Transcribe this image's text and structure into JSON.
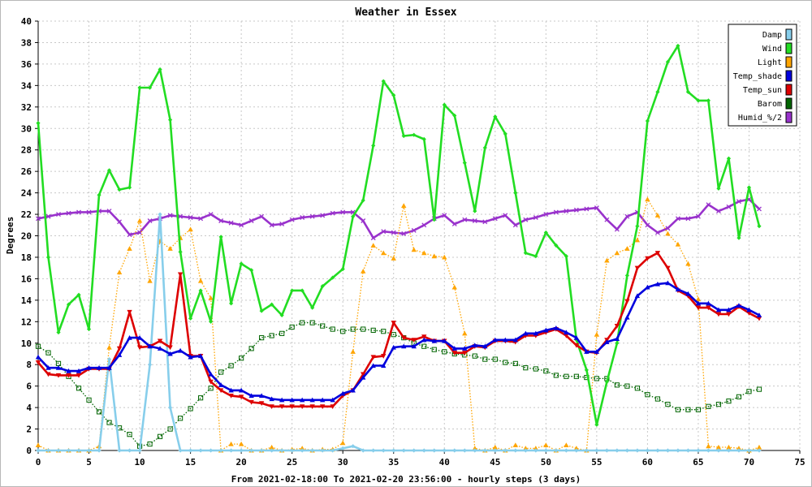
{
  "chart_data": {
    "type": "line",
    "title": "Weather in Essex",
    "xlabel": "From 2021-02-18:00 To 2021-02-20 23:56:00 - hourly steps (3 days)",
    "ylabel": "Degrees",
    "xlim": [
      0,
      75
    ],
    "ylim": [
      0,
      40
    ],
    "xticks": [
      0,
      5,
      10,
      15,
      20,
      25,
      30,
      35,
      40,
      45,
      50,
      55,
      60,
      65,
      70,
      75
    ],
    "yticks": [
      0,
      2,
      4,
      6,
      8,
      10,
      12,
      14,
      16,
      18,
      20,
      22,
      24,
      26,
      28,
      30,
      32,
      34,
      36,
      38,
      40
    ],
    "grid": true,
    "legend_position": "top-right",
    "series": [
      {
        "name": "Damp",
        "color": "#87ceeb",
        "style": "solid",
        "marker": "diamond",
        "values": [
          0,
          0,
          0,
          0,
          0,
          0,
          0,
          8.5,
          0,
          0,
          0,
          8,
          22,
          4,
          0,
          0,
          0,
          0,
          0,
          0,
          0,
          0,
          0,
          0,
          0,
          0,
          0,
          0,
          0,
          0,
          0.2,
          0.4,
          0,
          0,
          0,
          0,
          0,
          0,
          0,
          0,
          0,
          0,
          0,
          0,
          0,
          0,
          0,
          0,
          0,
          0,
          0,
          0,
          0,
          0,
          0,
          0,
          0,
          0,
          0,
          0,
          0,
          0,
          0,
          0,
          0,
          0,
          0,
          0,
          0,
          0,
          0,
          0
        ]
      },
      {
        "name": "Wind",
        "color": "#22dd22",
        "style": "solid",
        "marker": "diamond",
        "values": [
          30.5,
          18,
          11,
          13.6,
          14.5,
          11.3,
          23.8,
          26.1,
          24.3,
          24.5,
          33.8,
          33.8,
          35.5,
          30.8,
          18.5,
          12.3,
          14.9,
          12,
          19.9,
          13.7,
          17.4,
          16.8,
          13,
          13.6,
          12.6,
          14.9,
          14.9,
          13.3,
          15.3,
          16.1,
          16.9,
          21.8,
          23.3,
          28.4,
          34.4,
          33.1,
          29.3,
          29.4,
          29,
          21.5,
          32.2,
          31.2,
          26.8,
          22.3,
          28.2,
          31.1,
          29.5,
          24,
          18.4,
          18.1,
          20.3,
          19.1,
          18.1,
          10.3,
          7.5,
          2.4,
          6.4,
          10,
          16.3,
          20.9,
          30.7,
          33.4,
          36.2,
          37.7,
          33.4,
          32.6,
          32.6,
          24.4,
          27.2,
          19.8,
          24.5,
          20.9
        ]
      },
      {
        "name": "Light",
        "color": "#ffa500",
        "style": "dotted",
        "marker": "triangle",
        "values": [
          0.5,
          0,
          0,
          0,
          0,
          0,
          0.4,
          9.6,
          16.6,
          18.8,
          21.4,
          15.8,
          19.5,
          18.8,
          19.8,
          20.6,
          15.8,
          14.2,
          0,
          0.6,
          0.6,
          0,
          0,
          0.3,
          0,
          0.1,
          0.2,
          0,
          0.1,
          0.1,
          0.7,
          9.2,
          16.7,
          19.1,
          18.4,
          17.9,
          22.8,
          18.7,
          18.4,
          18.1,
          18,
          15.2,
          10.9,
          0.2,
          0,
          0.3,
          0,
          0.5,
          0.2,
          0.2,
          0.5,
          0,
          0.5,
          0.2,
          0,
          10.8,
          17.7,
          18.4,
          18.8,
          19.6,
          23.4,
          21.9,
          20.2,
          19.2,
          17.4,
          14.1,
          0.4,
          0.3,
          0.3,
          0.2,
          0,
          0.3
        ]
      },
      {
        "name": "Temp_shade",
        "color": "#0000dd",
        "style": "solid",
        "marker": "triangle",
        "values": [
          8.7,
          7.7,
          7.7,
          7.4,
          7.4,
          7.7,
          7.7,
          7.7,
          8.9,
          10.5,
          10.5,
          9.7,
          9.5,
          9,
          9.3,
          8.7,
          8.8,
          7.1,
          6.1,
          5.6,
          5.6,
          5.1,
          5.1,
          4.8,
          4.7,
          4.7,
          4.7,
          4.7,
          4.7,
          4.7,
          5.3,
          5.6,
          6.8,
          7.9,
          7.9,
          9.6,
          9.7,
          9.7,
          10.3,
          10.2,
          10.2,
          9.5,
          9.5,
          9.8,
          9.7,
          10.3,
          10.3,
          10.3,
          10.9,
          10.9,
          11.2,
          11.4,
          11,
          10.5,
          9.2,
          9.2,
          10.1,
          10.4,
          12.4,
          14.4,
          15.2,
          15.5,
          15.6,
          15,
          14.6,
          13.7,
          13.7,
          13.1,
          13.1,
          13.5,
          13.1,
          12.6
        ]
      },
      {
        "name": "Temp_sun",
        "color": "#dd0000",
        "style": "solid",
        "marker": "triangle-down",
        "values": [
          8.2,
          7.1,
          7,
          7,
          7,
          7.6,
          7.6,
          7.6,
          9.5,
          12.9,
          9.6,
          9.7,
          10.2,
          9.6,
          16.4,
          8.8,
          8.8,
          6.4,
          5.6,
          5.1,
          5,
          4.5,
          4.4,
          4.1,
          4.1,
          4.1,
          4.1,
          4.1,
          4.1,
          4.1,
          5.1,
          5.6,
          7.1,
          8.7,
          8.8,
          11.9,
          10.5,
          10.3,
          10.6,
          10.2,
          10.2,
          9.1,
          9.1,
          9.7,
          9.6,
          10.2,
          10.2,
          10.1,
          10.7,
          10.7,
          11,
          11.3,
          10.7,
          9.8,
          9.2,
          9.1,
          10.3,
          11.6,
          13.9,
          17,
          17.9,
          18.4,
          17,
          14.9,
          14.4,
          13.3,
          13.3,
          12.7,
          12.7,
          13.4,
          12.8,
          12.3
        ]
      },
      {
        "name": "Barom",
        "color": "#006400",
        "style": "dotted",
        "marker": "square-open",
        "values": [
          9.7,
          9.1,
          8.1,
          6.9,
          5.8,
          4.7,
          3.6,
          2.6,
          2.1,
          1.5,
          0.4,
          0.6,
          1.3,
          2,
          3,
          3.9,
          4.9,
          5.8,
          7.3,
          7.9,
          8.6,
          9.5,
          10.5,
          10.7,
          10.9,
          11.5,
          11.9,
          11.9,
          11.6,
          11.3,
          11.1,
          11.3,
          11.3,
          11.2,
          11.1,
          10.8,
          10.5,
          10,
          9.7,
          9.4,
          9.2,
          9,
          8.9,
          8.8,
          8.5,
          8.5,
          8.2,
          8.1,
          7.7,
          7.6,
          7.4,
          7,
          6.9,
          6.9,
          6.8,
          6.7,
          6.7,
          6.1,
          6,
          5.8,
          5.2,
          4.8,
          4.3,
          3.8,
          3.8,
          3.8,
          4.1,
          4.3,
          4.6,
          5,
          5.5,
          5.7
        ]
      },
      {
        "name": "Humid_%/2",
        "color": "#9932cc",
        "style": "solid",
        "marker": "x",
        "values": [
          21.6,
          21.8,
          22,
          22.1,
          22.2,
          22.2,
          22.3,
          22.3,
          21.3,
          20.1,
          20.3,
          21.4,
          21.6,
          21.9,
          21.8,
          21.7,
          21.6,
          22,
          21.4,
          21.2,
          21,
          21.4,
          21.8,
          21,
          21.1,
          21.5,
          21.7,
          21.8,
          21.9,
          22.1,
          22.2,
          22.2,
          21.4,
          19.8,
          20.4,
          20.3,
          20.2,
          20.5,
          21,
          21.6,
          21.9,
          21.1,
          21.5,
          21.4,
          21.3,
          21.6,
          21.9,
          21,
          21.5,
          21.7,
          22,
          22.2,
          22.3,
          22.4,
          22.5,
          22.6,
          21.5,
          20.6,
          21.8,
          22.2,
          21,
          20.3,
          20.7,
          21.6,
          21.6,
          21.8,
          22.9,
          22.3,
          22.7,
          23.2,
          23.4,
          22.5
        ]
      }
    ]
  }
}
